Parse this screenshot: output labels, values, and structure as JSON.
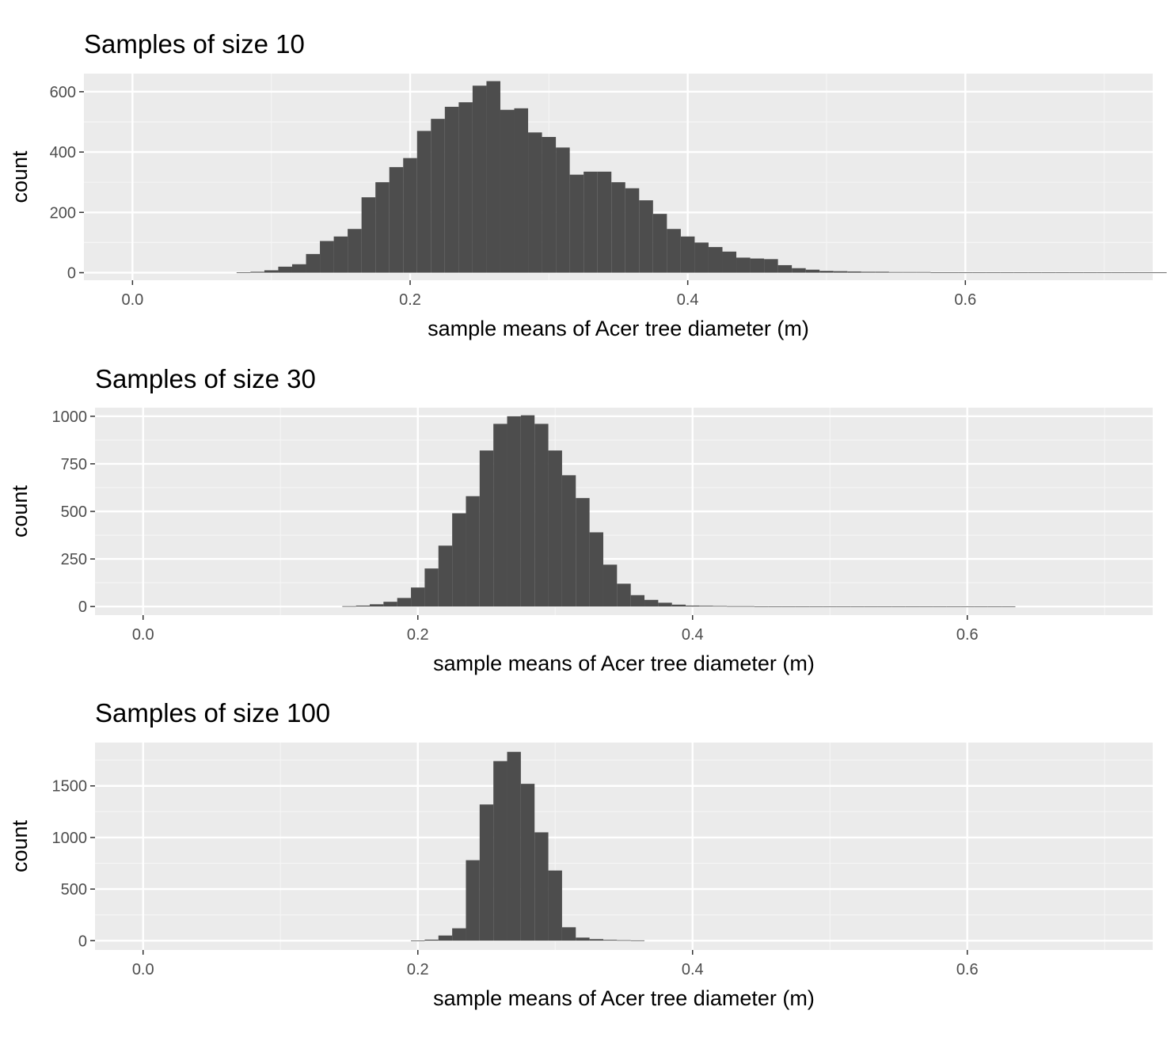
{
  "colors": {
    "panel_background": "#ebebeb",
    "grid_major": "#ffffff",
    "grid_minor": "#f5f5f5",
    "bar_fill": "#4d4d4d",
    "tick_mark": "#333333",
    "tick_label": "#4d4d4d"
  },
  "chart_data": [
    {
      "type": "bar",
      "title": "Samples of size  10",
      "xlabel": "sample means of Acer tree diameter (m)",
      "ylabel": "count",
      "xlim": [
        -0.035,
        0.735
      ],
      "ylim": [
        -25,
        660
      ],
      "xticks": [
        0.0,
        0.2,
        0.4,
        0.6
      ],
      "xtick_labels": [
        "0.0",
        "0.2",
        "0.4",
        "0.6"
      ],
      "yticks": [
        0,
        200,
        400,
        600
      ],
      "ytick_labels": [
        "0",
        "200",
        "400",
        "600"
      ],
      "grid": true,
      "bin_width": 0.01,
      "bins_start": 0.075,
      "values": [
        1,
        3,
        8,
        20,
        28,
        62,
        105,
        120,
        145,
        250,
        300,
        350,
        380,
        470,
        510,
        550,
        565,
        620,
        635,
        540,
        545,
        465,
        450,
        415,
        325,
        335,
        335,
        300,
        280,
        240,
        195,
        145,
        120,
        100,
        85,
        70,
        50,
        47,
        45,
        25,
        15,
        10,
        6,
        5,
        4,
        3,
        3,
        2,
        2,
        2,
        1,
        1,
        1,
        1,
        1,
        1,
        1,
        1,
        1,
        1,
        1,
        1,
        1,
        1,
        1,
        1,
        1
      ]
    },
    {
      "type": "bar",
      "title": "Samples of size  30",
      "xlabel": "sample means of Acer tree diameter (m)",
      "ylabel": "count",
      "xlim": [
        -0.035,
        0.735
      ],
      "ylim": [
        -45,
        1045
      ],
      "xticks": [
        0.0,
        0.2,
        0.4,
        0.6
      ],
      "xtick_labels": [
        "0.0",
        "0.2",
        "0.4",
        "0.6"
      ],
      "yticks": [
        0,
        250,
        500,
        750,
        1000
      ],
      "ytick_labels": [
        "0",
        "250",
        "500",
        "750",
        "1000"
      ],
      "grid": true,
      "bin_width": 0.01,
      "bins_start": 0.145,
      "values": [
        2,
        5,
        12,
        25,
        45,
        100,
        200,
        320,
        490,
        580,
        820,
        960,
        1000,
        1005,
        960,
        820,
        690,
        570,
        390,
        220,
        120,
        60,
        35,
        20,
        10,
        5,
        4,
        3,
        2,
        2,
        1,
        1,
        1,
        1,
        1,
        1,
        1,
        1,
        1,
        1,
        1,
        1,
        1,
        1,
        1,
        1,
        1,
        1,
        1
      ]
    },
    {
      "type": "bar",
      "title": "Samples of size  100",
      "xlabel": "sample means of Acer tree diameter (m)",
      "ylabel": "count",
      "xlim": [
        -0.035,
        0.735
      ],
      "ylim": [
        -90,
        1920
      ],
      "xticks": [
        0.0,
        0.2,
        0.4,
        0.6
      ],
      "xtick_labels": [
        "0.0",
        "0.2",
        "0.4",
        "0.6"
      ],
      "yticks": [
        0,
        500,
        1000,
        1500
      ],
      "ytick_labels": [
        "0",
        "500",
        "1000",
        "1500"
      ],
      "grid": true,
      "bin_width": 0.01,
      "bins_start": 0.195,
      "values": [
        2,
        10,
        50,
        120,
        780,
        1320,
        1740,
        1830,
        1520,
        1050,
        680,
        130,
        30,
        15,
        8,
        5,
        3
      ]
    }
  ]
}
